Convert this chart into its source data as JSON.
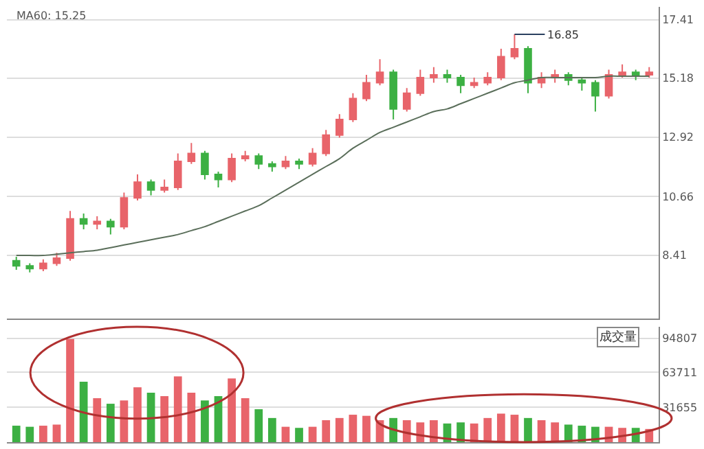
{
  "chart_data": [
    {
      "type": "candlestick",
      "categories": [
        null,
        null,
        null,
        null,
        null,
        null,
        null,
        null,
        null,
        null,
        null,
        null,
        null,
        null,
        null,
        null,
        null,
        null,
        null,
        null,
        null,
        null,
        null,
        null,
        null,
        null,
        null,
        null,
        null,
        null,
        null,
        null,
        null,
        null,
        null,
        null,
        null,
        null,
        null,
        null,
        null,
        null,
        null,
        null,
        null,
        null,
        null,
        null
      ],
      "ohlc": [
        [
          8.2,
          8.35,
          7.85,
          8.0
        ],
        [
          8.0,
          8.1,
          7.75,
          7.9
        ],
        [
          7.9,
          8.25,
          7.8,
          8.1
        ],
        [
          8.1,
          8.5,
          8.0,
          8.3
        ],
        [
          8.3,
          10.1,
          8.2,
          9.8
        ],
        [
          9.8,
          10.0,
          9.4,
          9.6
        ],
        [
          9.6,
          9.9,
          9.4,
          9.7
        ],
        [
          9.7,
          9.8,
          9.2,
          9.5
        ],
        [
          9.5,
          10.8,
          9.4,
          10.6
        ],
        [
          10.6,
          11.5,
          10.5,
          11.2
        ],
        [
          11.2,
          11.3,
          10.7,
          10.9
        ],
        [
          10.9,
          11.3,
          10.8,
          11.0
        ],
        [
          11.0,
          12.3,
          10.9,
          12.0
        ],
        [
          12.0,
          12.7,
          11.9,
          12.3
        ],
        [
          12.3,
          12.4,
          11.3,
          11.5
        ],
        [
          11.5,
          11.6,
          11.0,
          11.3
        ],
        [
          11.3,
          12.3,
          11.2,
          12.1
        ],
        [
          12.1,
          12.4,
          12.0,
          12.2
        ],
        [
          12.2,
          12.3,
          11.7,
          11.9
        ],
        [
          11.9,
          12.0,
          11.6,
          11.8
        ],
        [
          11.8,
          12.2,
          11.7,
          12.0
        ],
        [
          12.0,
          12.1,
          11.7,
          11.9
        ],
        [
          11.9,
          12.5,
          11.8,
          12.3
        ],
        [
          12.3,
          13.2,
          12.2,
          13.0
        ],
        [
          13.0,
          13.8,
          12.9,
          13.6
        ],
        [
          13.6,
          14.6,
          13.5,
          14.4
        ],
        [
          14.4,
          15.3,
          14.3,
          15.0
        ],
        [
          15.0,
          15.9,
          14.9,
          15.4
        ],
        [
          15.4,
          15.5,
          13.6,
          14.0
        ],
        [
          14.0,
          14.8,
          13.9,
          14.6
        ],
        [
          14.6,
          15.5,
          14.5,
          15.2
        ],
        [
          15.2,
          15.6,
          15.0,
          15.3
        ],
        [
          15.3,
          15.5,
          15.0,
          15.2
        ],
        [
          15.2,
          15.3,
          14.6,
          14.9
        ],
        [
          14.9,
          15.2,
          14.8,
          15.0
        ],
        [
          15.0,
          15.4,
          14.9,
          15.2
        ],
        [
          15.2,
          16.3,
          15.1,
          16.0
        ],
        [
          16.0,
          16.85,
          15.9,
          16.3
        ],
        [
          16.3,
          16.4,
          14.6,
          15.0
        ],
        [
          15.0,
          15.4,
          14.8,
          15.2
        ],
        [
          15.2,
          15.5,
          15.0,
          15.3
        ],
        [
          15.3,
          15.4,
          14.9,
          15.1
        ],
        [
          15.1,
          15.2,
          14.7,
          15.0
        ],
        [
          15.0,
          15.1,
          13.9,
          14.5
        ],
        [
          14.5,
          15.5,
          14.4,
          15.3
        ],
        [
          15.3,
          15.7,
          15.2,
          15.4
        ],
        [
          15.4,
          15.5,
          15.1,
          15.3
        ],
        [
          15.3,
          15.6,
          15.2,
          15.4
        ]
      ],
      "colors": [
        "#3cb043",
        "#3cb043",
        "#e8646a",
        "#e8646a",
        "#e8646a",
        "#3cb043",
        "#e8646a",
        "#3cb043",
        "#e8646a",
        "#e8646a",
        "#3cb043",
        "#e8646a",
        "#e8646a",
        "#e8646a",
        "#3cb043",
        "#3cb043",
        "#e8646a",
        "#e8646a",
        "#3cb043",
        "#3cb043",
        "#e8646a",
        "#3cb043",
        "#e8646a",
        "#e8646a",
        "#e8646a",
        "#e8646a",
        "#e8646a",
        "#e8646a",
        "#3cb043",
        "#e8646a",
        "#e8646a",
        "#e8646a",
        "#3cb043",
        "#3cb043",
        "#e8646a",
        "#e8646a",
        "#e8646a",
        "#e8646a",
        "#3cb043",
        "#e8646a",
        "#e8646a",
        "#3cb043",
        "#3cb043",
        "#3cb043",
        "#e8646a",
        "#e8646a",
        "#3cb043",
        "#e8646a"
      ],
      "series": [
        {
          "type": "line",
          "color": "#5a6e5a",
          "values": [
            8.4,
            8.4,
            8.4,
            8.45,
            8.5,
            8.55,
            8.6,
            8.7,
            8.8,
            8.9,
            9.0,
            9.1,
            9.2,
            9.35,
            9.5,
            9.7,
            9.9,
            10.1,
            10.3,
            10.6,
            10.9,
            11.2,
            11.5,
            11.8,
            12.1,
            12.5,
            12.8,
            13.1,
            13.3,
            13.5,
            13.7,
            13.9,
            14.0,
            14.2,
            14.4,
            14.6,
            14.8,
            15.0,
            15.1,
            15.2,
            15.2,
            15.2,
            15.2,
            15.2,
            15.25,
            15.25,
            15.25,
            15.25
          ]
        }
      ],
      "ylim": [
        6.0,
        17.9
      ],
      "yticks": [
        8.41,
        10.66,
        12.92,
        15.18,
        17.41
      ],
      "annotations": [
        "MA60: 15.25",
        "16.85"
      ],
      "grid": "y",
      "tick_labels": "y"
    },
    {
      "type": "bar",
      "title": "成交量",
      "categories": [
        null,
        null,
        null,
        null,
        null,
        null,
        null,
        null,
        null,
        null,
        null,
        null,
        null,
        null,
        null,
        null,
        null,
        null,
        null,
        null,
        null,
        null,
        null,
        null,
        null,
        null,
        null,
        null,
        null,
        null,
        null,
        null,
        null,
        null,
        null,
        null,
        null,
        null,
        null,
        null,
        null,
        null,
        null,
        null,
        null,
        null,
        null,
        null
      ],
      "values": [
        15000,
        14000,
        15000,
        16000,
        94000,
        55000,
        40000,
        35000,
        38000,
        50000,
        45000,
        42000,
        60000,
        45000,
        38000,
        42000,
        58000,
        40000,
        30000,
        22000,
        14000,
        13000,
        14000,
        20000,
        22000,
        25000,
        24000,
        20000,
        22000,
        20000,
        18000,
        20000,
        17000,
        18000,
        17000,
        22000,
        26000,
        25000,
        22000,
        20000,
        18000,
        16000,
        15000,
        14000,
        14000,
        13000,
        13000,
        12000
      ],
      "colors": [
        "#3cb043",
        "#3cb043",
        "#e8646a",
        "#e8646a",
        "#e8646a",
        "#3cb043",
        "#e8646a",
        "#3cb043",
        "#e8646a",
        "#e8646a",
        "#3cb043",
        "#e8646a",
        "#e8646a",
        "#e8646a",
        "#3cb043",
        "#3cb043",
        "#e8646a",
        "#e8646a",
        "#3cb043",
        "#3cb043",
        "#e8646a",
        "#3cb043",
        "#e8646a",
        "#e8646a",
        "#e8646a",
        "#e8646a",
        "#e8646a",
        "#e8646a",
        "#3cb043",
        "#e8646a",
        "#e8646a",
        "#e8646a",
        "#3cb043",
        "#3cb043",
        "#e8646a",
        "#e8646a",
        "#e8646a",
        "#e8646a",
        "#3cb043",
        "#e8646a",
        "#e8646a",
        "#3cb043",
        "#3cb043",
        "#3cb043",
        "#e8646a",
        "#e8646a",
        "#3cb043",
        "#e8646a"
      ],
      "ylim": [
        0,
        105000
      ],
      "yticks": [
        31655,
        63711,
        94807
      ],
      "grid": "y",
      "tick_labels": "y"
    }
  ]
}
